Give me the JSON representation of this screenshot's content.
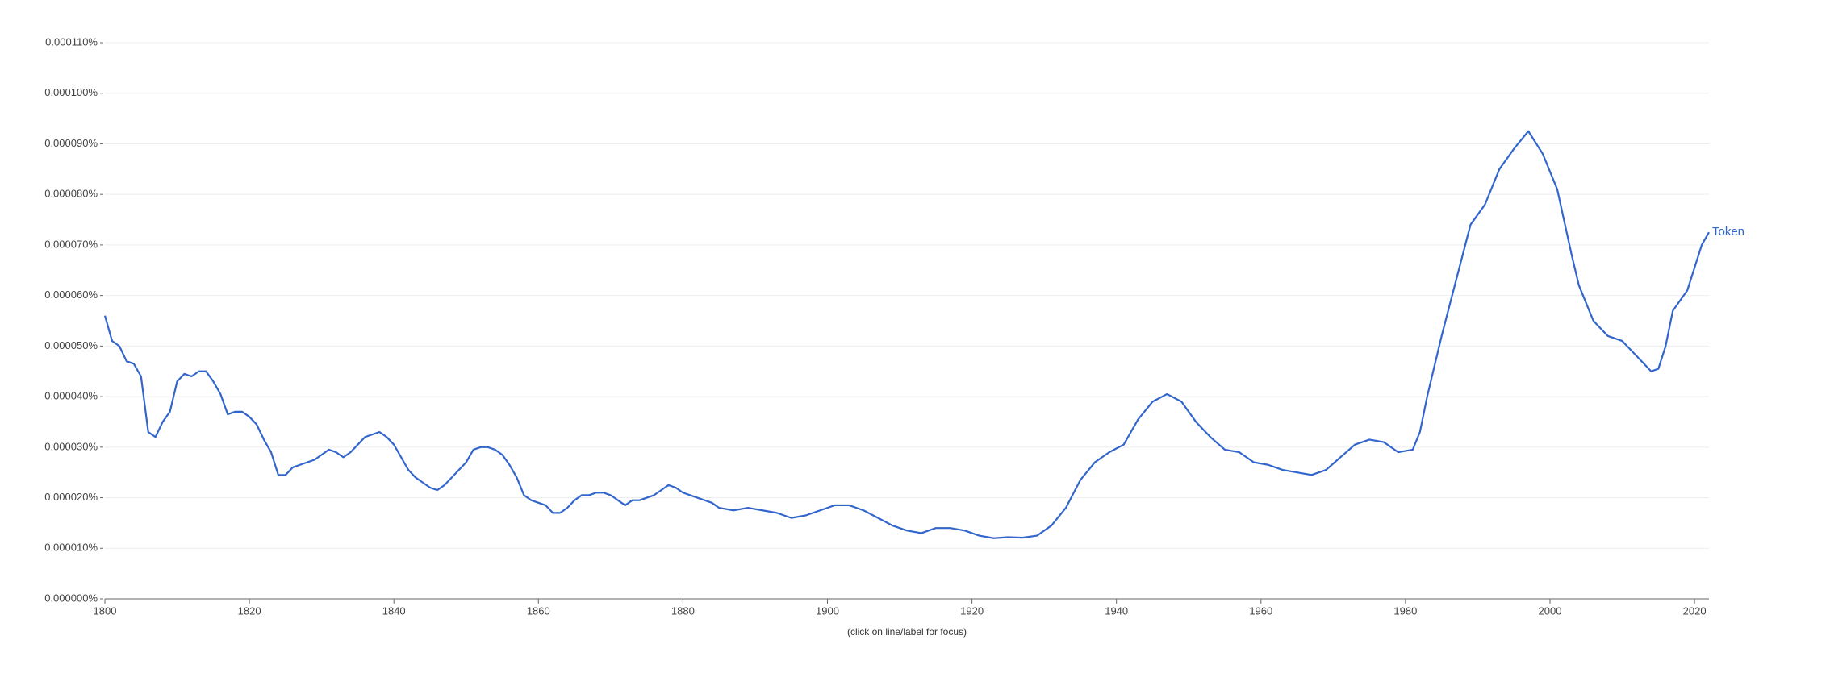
{
  "chart_data": {
    "type": "line",
    "note": "(click on line/label for focus)",
    "xlim": [
      1800,
      2022
    ],
    "xticks": [
      1800,
      1820,
      1840,
      1860,
      1880,
      1900,
      1920,
      1940,
      1960,
      1980,
      2000,
      2020
    ],
    "ylim": [
      0,
      0.00011
    ],
    "yticks": [
      {
        "value": 0,
        "label": "0.000000%"
      },
      {
        "value": 1e-05,
        "label": "0.000010%"
      },
      {
        "value": 2e-05,
        "label": "0.000020%"
      },
      {
        "value": 3e-05,
        "label": "0.000030%"
      },
      {
        "value": 4e-05,
        "label": "0.000040%"
      },
      {
        "value": 5e-05,
        "label": "0.000050%"
      },
      {
        "value": 6e-05,
        "label": "0.000060%"
      },
      {
        "value": 7e-05,
        "label": "0.000070%"
      },
      {
        "value": 8e-05,
        "label": "0.000080%"
      },
      {
        "value": 9e-05,
        "label": "0.000090%"
      },
      {
        "value": 0.0001,
        "label": "0.000100%"
      },
      {
        "value": 0.00011,
        "label": "0.000110%"
      }
    ],
    "grid": true,
    "x": [
      1800,
      1801,
      1802,
      1803,
      1804,
      1805,
      1806,
      1807,
      1808,
      1809,
      1810,
      1811,
      1812,
      1813,
      1814,
      1815,
      1816,
      1817,
      1818,
      1819,
      1820,
      1821,
      1822,
      1823,
      1824,
      1825,
      1826,
      1827,
      1828,
      1829,
      1830,
      1831,
      1832,
      1833,
      1834,
      1835,
      1836,
      1837,
      1838,
      1839,
      1840,
      1841,
      1842,
      1843,
      1844,
      1845,
      1846,
      1847,
      1848,
      1849,
      1850,
      1851,
      1852,
      1853,
      1854,
      1855,
      1856,
      1857,
      1858,
      1859,
      1860,
      1861,
      1862,
      1863,
      1864,
      1865,
      1866,
      1867,
      1868,
      1869,
      1870,
      1871,
      1872,
      1873,
      1874,
      1875,
      1876,
      1877,
      1878,
      1879,
      1880,
      1882,
      1884,
      1885,
      1887,
      1889,
      1891,
      1893,
      1895,
      1897,
      1899,
      1901,
      1903,
      1905,
      1907,
      1909,
      1911,
      1913,
      1915,
      1917,
      1919,
      1921,
      1923,
      1925,
      1927,
      1929,
      1931,
      1933,
      1935,
      1937,
      1939,
      1941,
      1943,
      1945,
      1947,
      1949,
      1951,
      1953,
      1955,
      1957,
      1959,
      1961,
      1963,
      1965,
      1967,
      1969,
      1971,
      1973,
      1975,
      1977,
      1979,
      1981,
      1982,
      1983,
      1985,
      1987,
      1989,
      1991,
      1993,
      1995,
      1997,
      1999,
      2001,
      2003,
      2004,
      2006,
      2008,
      2010,
      2012,
      2014,
      2015,
      2016,
      2017,
      2019,
      2021,
      2022
    ],
    "series": [
      {
        "name": "Token",
        "color": "#3366cc",
        "values": [
          5.6e-05,
          5.1e-05,
          5e-05,
          4.7e-05,
          4.65e-05,
          4.4e-05,
          3.3e-05,
          3.2e-05,
          3.5e-05,
          3.7e-05,
          4.3e-05,
          4.45e-05,
          4.4e-05,
          4.5e-05,
          4.5e-05,
          4.3e-05,
          4.05e-05,
          3.65e-05,
          3.7e-05,
          3.7e-05,
          3.6e-05,
          3.45e-05,
          3.15e-05,
          2.9e-05,
          2.45e-05,
          2.45e-05,
          2.6e-05,
          2.65e-05,
          2.7e-05,
          2.75e-05,
          2.85e-05,
          2.95e-05,
          2.9e-05,
          2.8e-05,
          2.9e-05,
          3.05e-05,
          3.2e-05,
          3.25e-05,
          3.3e-05,
          3.2e-05,
          3.05e-05,
          2.8e-05,
          2.55e-05,
          2.4e-05,
          2.3e-05,
          2.2e-05,
          2.15e-05,
          2.25e-05,
          2.4e-05,
          2.55e-05,
          2.7e-05,
          2.95e-05,
          3e-05,
          3e-05,
          2.95e-05,
          2.85e-05,
          2.65e-05,
          2.4e-05,
          2.05e-05,
          1.95e-05,
          1.9e-05,
          1.85e-05,
          1.7e-05,
          1.7e-05,
          1.8e-05,
          1.95e-05,
          2.05e-05,
          2.05e-05,
          2.1e-05,
          2.1e-05,
          2.05e-05,
          1.95e-05,
          1.85e-05,
          1.95e-05,
          1.95e-05,
          2e-05,
          2.05e-05,
          2.15e-05,
          2.25e-05,
          2.2e-05,
          2.1e-05,
          2e-05,
          1.9e-05,
          1.8e-05,
          1.75e-05,
          1.8e-05,
          1.75e-05,
          1.7e-05,
          1.6e-05,
          1.65e-05,
          1.75e-05,
          1.85e-05,
          1.85e-05,
          1.75e-05,
          1.6e-05,
          1.45e-05,
          1.35e-05,
          1.3e-05,
          1.4e-05,
          1.4e-05,
          1.35e-05,
          1.25e-05,
          1.2e-05,
          1.22e-05,
          1.21e-05,
          1.25e-05,
          1.45e-05,
          1.8e-05,
          2.35e-05,
          2.7e-05,
          2.9e-05,
          3.05e-05,
          3.55e-05,
          3.9e-05,
          4.05e-05,
          3.9e-05,
          3.5e-05,
          3.2e-05,
          2.95e-05,
          2.9e-05,
          2.7e-05,
          2.65e-05,
          2.55e-05,
          2.5e-05,
          2.45e-05,
          2.55e-05,
          2.8e-05,
          3.05e-05,
          3.15e-05,
          3.1e-05,
          2.9e-05,
          2.95e-05,
          3.3e-05,
          4e-05,
          5.2e-05,
          6.3e-05,
          7.4e-05,
          7.8e-05,
          8.5e-05,
          8.9e-05,
          9.25e-05,
          8.8e-05,
          8.1e-05,
          6.8e-05,
          6.2e-05,
          5.5e-05,
          5.2e-05,
          5.1e-05,
          4.8e-05,
          4.5e-05,
          4.55e-05,
          5e-05,
          5.7e-05,
          6.1e-05,
          7e-05,
          7.25e-05
        ]
      }
    ]
  }
}
